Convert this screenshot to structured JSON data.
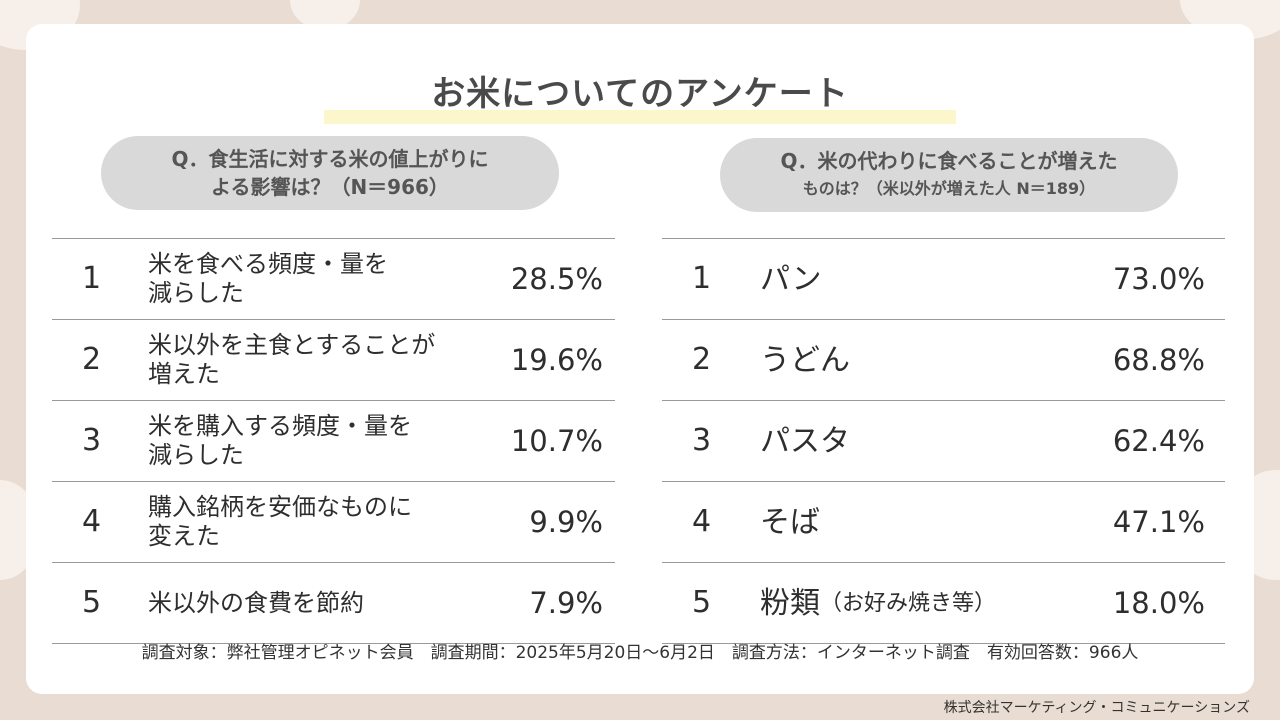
{
  "title": "お米についてのアンケート",
  "left": {
    "question_line1": "Q．食生活に対する米の値上がりに",
    "question_line2": "よる影響は？（N＝966）",
    "rows": [
      {
        "rank": "1",
        "label_line1": "米を食べる頻度・量を",
        "label_line2": "減らした",
        "pct": "28.5%"
      },
      {
        "rank": "2",
        "label_line1": "米以外を主食とすることが",
        "label_line2": "増えた",
        "pct": "19.6%"
      },
      {
        "rank": "3",
        "label_line1": "米を購入する頻度・量を",
        "label_line2": "減らした",
        "pct": "10.7%"
      },
      {
        "rank": "4",
        "label_line1": "購入銘柄を安価なものに",
        "label_line2": "変えた",
        "pct": "9.9%"
      },
      {
        "rank": "5",
        "label_line1": "米以外の食費を節約",
        "label_line2": "",
        "pct": "7.9%"
      }
    ]
  },
  "right": {
    "question_line1": "Q．米の代わりに食べることが増えた",
    "question_line2": "ものは？（米以外が増えた人 N＝189）",
    "rows": [
      {
        "rank": "1",
        "label": "パン",
        "note": "",
        "pct": "73.0%"
      },
      {
        "rank": "2",
        "label": "うどん",
        "note": "",
        "pct": "68.8%"
      },
      {
        "rank": "3",
        "label": "パスタ",
        "note": "",
        "pct": "62.4%"
      },
      {
        "rank": "4",
        "label": "そば",
        "note": "",
        "pct": "47.1%"
      },
      {
        "rank": "5",
        "label": "粉類",
        "note": "（お好み焼き等）",
        "pct": "18.0%"
      }
    ]
  },
  "footer": "調査対象：弊社管理オピネット会員　調査期間：2025年5月20日～6月2日　調査方法：インターネット調査　有効回答数：966人",
  "credit": "株式会社マーケティング・コミュニケーションズ"
}
